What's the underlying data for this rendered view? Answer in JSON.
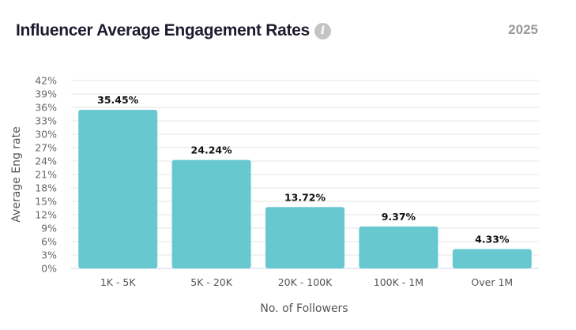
{
  "header": {
    "title": "Influencer Average Engagement Rates",
    "year": "2025",
    "info_icon": "info-icon"
  },
  "chart_data": {
    "type": "bar",
    "title": "Influencer Average Engagement Rates",
    "xlabel": "No. of Followers",
    "ylabel": "Average Eng rate",
    "categories": [
      "1K - 5K",
      "5K - 20K",
      "20K - 100K",
      "100K - 1M",
      "Over 1M"
    ],
    "values": [
      35.45,
      24.24,
      13.72,
      9.37,
      4.33
    ],
    "data_labels": [
      "35.45%",
      "24.24%",
      "13.72%",
      "9.37%",
      "4.33%"
    ],
    "ylim": [
      0,
      42
    ],
    "yticks": [
      "0%",
      "3%",
      "6%",
      "9%",
      "12%",
      "15%",
      "18%",
      "21%",
      "24%",
      "27%",
      "30%",
      "33%",
      "36%",
      "39%",
      "42%"
    ],
    "grid": true,
    "bar_color": "#67c8d0"
  }
}
